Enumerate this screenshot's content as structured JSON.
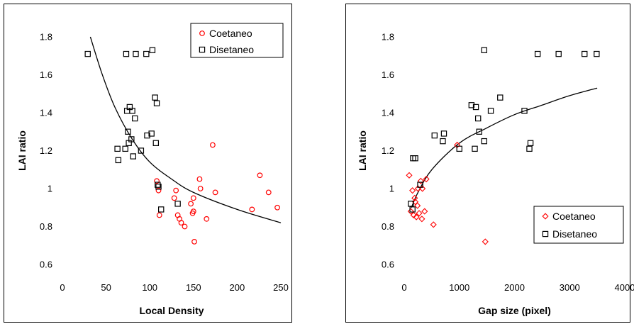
{
  "colors": {
    "coetaneo": "#ff0000",
    "disetaneo": "#000000",
    "curve": "#000000"
  },
  "chart_data": [
    {
      "type": "scatter",
      "xlabel": "Local Density",
      "ylabel": "LAI ratio",
      "xlim": [
        0,
        250
      ],
      "ylim": [
        0.6,
        1.8
      ],
      "xticks": [
        "0",
        "50",
        "100",
        "150",
        "200",
        "250"
      ],
      "yticks": [
        "0.6",
        "0.8",
        "1",
        "1.2",
        "1.4",
        "1.6",
        "1.8"
      ],
      "legend": {
        "position": "top-right",
        "entries": [
          "Coetaneo",
          "Disetaneo"
        ]
      },
      "series": [
        {
          "name": "Coetaneo",
          "marker": "circle",
          "points": [
            [
              108,
              1.04
            ],
            [
              110,
              0.99
            ],
            [
              111,
              0.86
            ],
            [
              128,
              0.95
            ],
            [
              130,
              0.99
            ],
            [
              132,
              0.86
            ],
            [
              134,
              0.84
            ],
            [
              136,
              0.82
            ],
            [
              140,
              0.8
            ],
            [
              147,
              0.92
            ],
            [
              149,
              0.87
            ],
            [
              150,
              0.88
            ],
            [
              150,
              0.95
            ],
            [
              151,
              0.72
            ],
            [
              157,
              1.05
            ],
            [
              158,
              1.0
            ],
            [
              165,
              0.84
            ],
            [
              172,
              1.23
            ],
            [
              175,
              0.98
            ],
            [
              217,
              0.89
            ],
            [
              226,
              1.07
            ],
            [
              236,
              0.98
            ],
            [
              246,
              0.9
            ]
          ]
        },
        {
          "name": "Disetaneo",
          "marker": "square",
          "points": [
            [
              29,
              1.71
            ],
            [
              63,
              1.21
            ],
            [
              64,
              1.15
            ],
            [
              72,
              1.21
            ],
            [
              73,
              1.71
            ],
            [
              74,
              1.41
            ],
            [
              75,
              1.3
            ],
            [
              76,
              1.24
            ],
            [
              77,
              1.43
            ],
            [
              79,
              1.26
            ],
            [
              80,
              1.41
            ],
            [
              81,
              1.17
            ],
            [
              83,
              1.37
            ],
            [
              84,
              1.71
            ],
            [
              90,
              1.2
            ],
            [
              96,
              1.71
            ],
            [
              97,
              1.28
            ],
            [
              102,
              1.29
            ],
            [
              103,
              1.73
            ],
            [
              106,
              1.48
            ],
            [
              107,
              1.24
            ],
            [
              108,
              1.45
            ],
            [
              109,
              1.02
            ],
            [
              110,
              1.01
            ],
            [
              113,
              0.89
            ],
            [
              132,
              0.92
            ]
          ]
        }
      ],
      "trendline": {
        "type": "fit",
        "points": [
          [
            32,
            1.8
          ],
          [
            45,
            1.61
          ],
          [
            60,
            1.43
          ],
          [
            80,
            1.26
          ],
          [
            100,
            1.14
          ],
          [
            125,
            1.05
          ],
          [
            150,
            0.98
          ],
          [
            200,
            0.89
          ],
          [
            250,
            0.82
          ]
        ]
      }
    },
    {
      "type": "scatter",
      "xlabel": "Gap size (pixel)",
      "ylabel": "LAI ratio",
      "xlim": [
        0,
        4000
      ],
      "ylim": [
        0.6,
        1.8
      ],
      "xticks": [
        "0",
        "1000",
        "2000",
        "3000",
        "4000"
      ],
      "yticks": [
        "0.6",
        "0.8",
        "1",
        "1.2",
        "1.4",
        "1.6",
        "1.8"
      ],
      "legend": {
        "position": "bottom-right",
        "entries": [
          "Coetaneo",
          "Disetaneo"
        ]
      },
      "series": [
        {
          "name": "Coetaneo",
          "marker": "diamond",
          "points": [
            [
              90,
              1.07
            ],
            [
              120,
              0.88
            ],
            [
              150,
              0.99
            ],
            [
              170,
              0.86
            ],
            [
              190,
              0.95
            ],
            [
              200,
              0.93
            ],
            [
              220,
              0.85
            ],
            [
              240,
              0.91
            ],
            [
              250,
              1.0
            ],
            [
              270,
              0.87
            ],
            [
              300,
              1.04
            ],
            [
              320,
              0.84
            ],
            [
              330,
              1.0
            ],
            [
              370,
              0.88
            ],
            [
              400,
              1.05
            ],
            [
              530,
              0.81
            ],
            [
              960,
              1.23
            ],
            [
              1470,
              0.72
            ]
          ]
        },
        {
          "name": "Disetaneo",
          "marker": "square",
          "points": [
            [
              120,
              0.92
            ],
            [
              150,
              0.89
            ],
            [
              160,
              1.16
            ],
            [
              200,
              1.16
            ],
            [
              290,
              1.02
            ],
            [
              550,
              1.28
            ],
            [
              700,
              1.25
            ],
            [
              720,
              1.29
            ],
            [
              1000,
              1.21
            ],
            [
              1220,
              1.44
            ],
            [
              1280,
              1.21
            ],
            [
              1300,
              1.43
            ],
            [
              1340,
              1.37
            ],
            [
              1360,
              1.3
            ],
            [
              1450,
              1.25
            ],
            [
              1450,
              1.73
            ],
            [
              1570,
              1.41
            ],
            [
              1740,
              1.48
            ],
            [
              2180,
              1.41
            ],
            [
              2270,
              1.21
            ],
            [
              2290,
              1.24
            ],
            [
              2420,
              1.71
            ],
            [
              2800,
              1.71
            ],
            [
              3270,
              1.71
            ],
            [
              3490,
              1.71
            ]
          ]
        }
      ],
      "trendline": {
        "type": "fit",
        "points": [
          [
            130,
            0.9
          ],
          [
            250,
            0.98
          ],
          [
            500,
            1.1
          ],
          [
            1000,
            1.24
          ],
          [
            1500,
            1.32
          ],
          [
            2000,
            1.39
          ],
          [
            2500,
            1.44
          ],
          [
            3000,
            1.49
          ],
          [
            3500,
            1.53
          ]
        ]
      }
    }
  ]
}
